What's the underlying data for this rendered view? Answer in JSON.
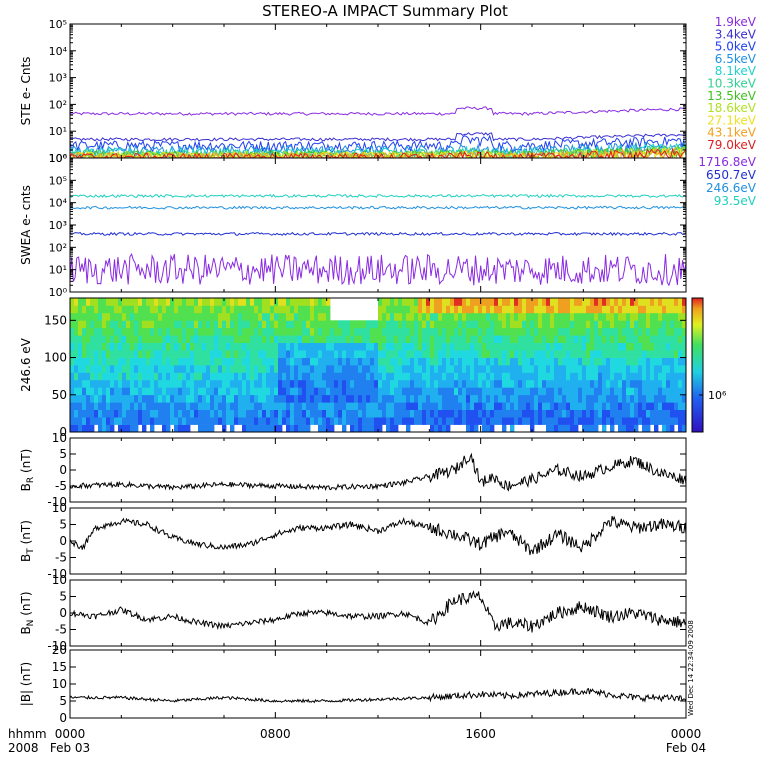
{
  "title": "STEREO-A IMPACT Summary Plot",
  "footer": {
    "left_top": "hhmm",
    "left_bottom": "2008",
    "date_start": "Feb 03",
    "date_end": "Feb 04"
  },
  "timestamp": "Wed Dec 14 22:34:09 2008",
  "chart_data": [
    {
      "type": "line",
      "panel": "ste",
      "ylabel": "STE e- Cnts",
      "yscale": "log",
      "ylim": [
        1,
        100000
      ],
      "yticks": [
        "10⁰",
        "10¹",
        "10²",
        "10³",
        "10⁴",
        "10⁵"
      ],
      "xlim_hours": [
        0,
        24
      ],
      "series": [
        {
          "name": "1.9keV",
          "color": "#8a2be2",
          "level": 45
        },
        {
          "name": "3.4keV",
          "color": "#3a2fd0",
          "level": 5
        },
        {
          "name": "5.0keV",
          "color": "#2040f0",
          "level": 3
        },
        {
          "name": "6.5keV",
          "color": "#2090e0",
          "level": 2
        },
        {
          "name": "8.1keV",
          "color": "#20d0d0",
          "level": 1.6
        },
        {
          "name": "10.3keV",
          "color": "#30d090",
          "level": 1.4
        },
        {
          "name": "13.5keV",
          "color": "#40c020",
          "level": 1.3
        },
        {
          "name": "18.6keV",
          "color": "#b0e020",
          "level": 1.2
        },
        {
          "name": "27.1keV",
          "color": "#f0e020",
          "level": 1.15
        },
        {
          "name": "43.1keV",
          "color": "#f0a020",
          "level": 1.1
        },
        {
          "name": "79.0keV",
          "color": "#e02020",
          "level": 1.05
        }
      ]
    },
    {
      "type": "line",
      "panel": "swea",
      "ylabel": "SWEA e- cnts",
      "yscale": "log",
      "ylim": [
        1,
        1000000
      ],
      "yticks": [
        "10⁰",
        "10¹",
        "10²",
        "10³",
        "10⁴",
        "10⁵",
        "10⁶"
      ],
      "xlim_hours": [
        0,
        24
      ],
      "series": [
        {
          "name": "1716.8eV",
          "color": "#8a2be2",
          "level": 10
        },
        {
          "name": "650.7eV",
          "color": "#2030d0",
          "level": 400
        },
        {
          "name": "246.6eV",
          "color": "#2090e0",
          "level": 6000
        },
        {
          "name": "93.5eV",
          "color": "#20d0c0",
          "level": 20000
        }
      ]
    },
    {
      "type": "heatmap",
      "panel": "pad",
      "ylabel": "246.6 eV",
      "ylim": [
        0,
        180
      ],
      "yticks": [
        "0",
        "50",
        "100",
        "150"
      ],
      "colorbar_label": "10⁶",
      "xlim_hours": [
        0,
        24
      ]
    },
    {
      "type": "line",
      "panel": "br",
      "ylabel": "BR (nT)",
      "ylabel_main": "B",
      "ylabel_sub": "R",
      "ylabel_unit": "(nT)",
      "ylim": [
        -10,
        10
      ],
      "yticks": [
        "-10",
        "-5",
        "0",
        "5",
        "10"
      ],
      "xlim_hours": [
        0,
        24
      ],
      "keypoints": [
        [
          0,
          -5
        ],
        [
          2,
          -4.5
        ],
        [
          4,
          -5.5
        ],
        [
          6,
          -4.5
        ],
        [
          8,
          -5
        ],
        [
          10,
          -5.5
        ],
        [
          12,
          -5
        ],
        [
          13,
          -4
        ],
        [
          14,
          -2
        ],
        [
          15,
          0
        ],
        [
          15.6,
          5
        ],
        [
          16,
          -4
        ],
        [
          16.5,
          -2
        ],
        [
          17,
          -5
        ],
        [
          18,
          -3
        ],
        [
          19,
          0
        ],
        [
          20,
          -2
        ],
        [
          21,
          1
        ],
        [
          22,
          3
        ],
        [
          23,
          -1
        ],
        [
          24,
          -3
        ]
      ]
    },
    {
      "type": "line",
      "panel": "bt",
      "ylabel": "BT (nT)",
      "ylabel_main": "B",
      "ylabel_sub": "T",
      "ylabel_unit": "(nT)",
      "ylim": [
        -10,
        10
      ],
      "yticks": [
        "-10",
        "-5",
        "0",
        "5",
        "10"
      ],
      "xlim_hours": [
        0,
        24
      ],
      "keypoints": [
        [
          0,
          0
        ],
        [
          0.5,
          -2
        ],
        [
          1,
          4
        ],
        [
          2,
          6
        ],
        [
          3,
          5
        ],
        [
          4,
          1
        ],
        [
          5,
          -1
        ],
        [
          6,
          -2
        ],
        [
          7,
          -1
        ],
        [
          8,
          2
        ],
        [
          9,
          4
        ],
        [
          10,
          4
        ],
        [
          11,
          5
        ],
        [
          12,
          3
        ],
        [
          13,
          6
        ],
        [
          14,
          4
        ],
        [
          15,
          2
        ],
        [
          16,
          -1
        ],
        [
          17,
          3
        ],
        [
          18,
          -3
        ],
        [
          19,
          2
        ],
        [
          20,
          -2
        ],
        [
          21,
          6
        ],
        [
          22,
          4
        ],
        [
          23,
          5
        ],
        [
          24,
          4
        ]
      ]
    },
    {
      "type": "line",
      "panel": "bn",
      "ylabel": "BN (nT)",
      "ylabel_main": "B",
      "ylabel_sub": "N",
      "ylabel_unit": "(nT)",
      "ylim": [
        -10,
        10
      ],
      "yticks": [
        "-10",
        "-5",
        "0",
        "5",
        "10"
      ],
      "xlim_hours": [
        0,
        24
      ],
      "keypoints": [
        [
          0,
          0
        ],
        [
          1,
          -1
        ],
        [
          2,
          1
        ],
        [
          3,
          -2
        ],
        [
          4,
          -1
        ],
        [
          5,
          -3
        ],
        [
          6,
          -4
        ],
        [
          7,
          -3
        ],
        [
          8,
          -2
        ],
        [
          9,
          0
        ],
        [
          10,
          0
        ],
        [
          11,
          -1
        ],
        [
          12,
          -1
        ],
        [
          13,
          0
        ],
        [
          14,
          -3
        ],
        [
          15,
          4
        ],
        [
          16,
          5
        ],
        [
          16.5,
          -4
        ],
        [
          17,
          -3
        ],
        [
          18,
          -4
        ],
        [
          19,
          0
        ],
        [
          20,
          2
        ],
        [
          21,
          -1
        ],
        [
          22,
          0
        ],
        [
          23,
          -2
        ],
        [
          24,
          -3
        ]
      ]
    },
    {
      "type": "line",
      "panel": "bmag",
      "ylabel": "|B| (nT)",
      "ylim": [
        0,
        20
      ],
      "yticks": [
        "0",
        "5",
        "10",
        "15",
        "20"
      ],
      "xlim_hours": [
        0,
        24
      ],
      "keypoints": [
        [
          0,
          6
        ],
        [
          2,
          6
        ],
        [
          4,
          5
        ],
        [
          6,
          6
        ],
        [
          8,
          5
        ],
        [
          10,
          5
        ],
        [
          12,
          5.5
        ],
        [
          14,
          6
        ],
        [
          15,
          6.5
        ],
        [
          16,
          7
        ],
        [
          17,
          6.5
        ],
        [
          18,
          7
        ],
        [
          19,
          7.5
        ],
        [
          20,
          8
        ],
        [
          21,
          7
        ],
        [
          22,
          6
        ],
        [
          23,
          6
        ],
        [
          24,
          5.5
        ]
      ]
    }
  ],
  "xaxis": {
    "ticks": [
      "0000",
      "0800",
      "1600",
      "0000"
    ],
    "hours": [
      0,
      8,
      16,
      24
    ]
  }
}
